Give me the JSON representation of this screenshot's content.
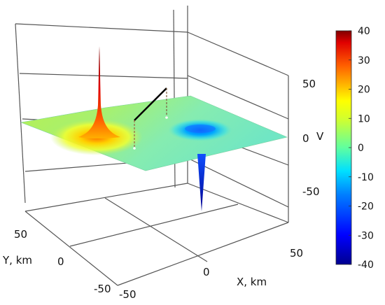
{
  "chart_data": {
    "type": "surface",
    "title": "",
    "xlabel": "X, km",
    "ylabel": "Y, km",
    "zlabel": "V",
    "x_ticks": [
      "-50",
      "0",
      "50"
    ],
    "y_ticks": [
      "-50",
      "0",
      "50"
    ],
    "z_ticks": [
      "-50",
      "0",
      "50"
    ],
    "xlim": [
      -70,
      70
    ],
    "ylim": [
      -70,
      70
    ],
    "zlim": [
      -60,
      60
    ],
    "grid": true,
    "colorbar": {
      "ticks": [
        "40",
        "30",
        "20",
        "10",
        "0",
        "-10",
        "-20",
        "-30",
        "-40"
      ],
      "range": [
        -40,
        40
      ],
      "colormap": "jet",
      "colors": [
        "#00008f",
        "#0000ff",
        "#0080ff",
        "#00ffff",
        "#80ff80",
        "#ffff00",
        "#ff8000",
        "#ff0000",
        "#800000"
      ]
    },
    "features": [
      {
        "name": "positive spike",
        "x": -40,
        "y": 10,
        "peak_v": 40
      },
      {
        "name": "negative spike",
        "x": 10,
        "y": -20,
        "peak_v": -40
      },
      {
        "name": "negative depression",
        "x": 20,
        "y": 20,
        "peak_v": -12
      }
    ]
  }
}
